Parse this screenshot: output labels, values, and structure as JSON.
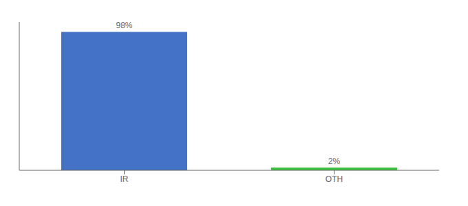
{
  "chart_data": {
    "type": "bar",
    "categories": [
      "IR",
      "OTH"
    ],
    "values": [
      98,
      2
    ],
    "value_labels": [
      "98%",
      "2%"
    ],
    "colors": [
      "#4472c4",
      "#3dbf3d"
    ],
    "ylim": [
      0,
      105
    ],
    "yticks": [],
    "data_labels": true,
    "tick_labels": "x",
    "grid": false
  }
}
